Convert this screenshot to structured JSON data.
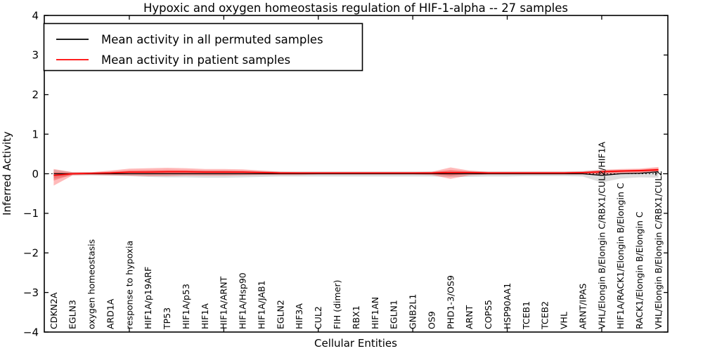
{
  "figure": {
    "title": "Hypoxic and oxygen homeostasis regulation of HIF-1-alpha -- 27 samples",
    "xlabel": "Cellular Entities",
    "ylabel": "Inferred Activity"
  },
  "legend": {
    "items": [
      {
        "label": "Mean activity in all permuted samples",
        "color": "#000000"
      },
      {
        "label": "Mean activity in patient samples",
        "color": "#ff0000"
      }
    ]
  },
  "chart_data": {
    "type": "line",
    "title": "Hypoxic and oxygen homeostasis regulation of HIF-1-alpha -- 27 samples",
    "xlabel": "Cellular Entities",
    "ylabel": "Inferred Activity",
    "ylim": [
      -4,
      4
    ],
    "yticks": [
      -4,
      -3,
      -2,
      -1,
      0,
      1,
      2,
      3,
      4
    ],
    "xticks_major_at_index": [
      4,
      9,
      14,
      19,
      24,
      29
    ],
    "grid": false,
    "legend_position": "upper left",
    "zero_line": {
      "y": 0,
      "style": "dotted",
      "color": "#000000"
    },
    "categories": [
      "CDKN2A",
      "EGLN3",
      "oxygen homeostasis",
      "ARD1A",
      "response to hypoxia",
      "HIF1A/p19ARF",
      "TP53",
      "HIF1A/p53",
      "HIF1A",
      "HIF1A/ARNT",
      "HIF1A/Hsp90",
      "HIF1A/JAB1",
      "EGLN2",
      "HIF3A",
      "CUL2",
      "FIH (dimer)",
      "RBX1",
      "HIF1AN",
      "EGLN1",
      "GNB2L1",
      "OS9",
      "PHD1-3/OS9",
      "ARNT",
      "COPS5",
      "HSP90AA1",
      "TCEB1",
      "TCEB2",
      "VHL",
      "ARNT/IPAS",
      "VHL/Elongin B/Elongin C/RBX1/CUL2/HIF1A",
      "HIF1A/RACK1/Elongin B/Elongin C",
      "RACK1/Elongin B/Elongin C",
      "VHL/Elongin B/Elongin C/RBX1/CUL2"
    ],
    "series": [
      {
        "name": "Mean activity in all permuted samples",
        "color": "#000000",
        "line_width": 1.3,
        "band_color": "rgba(120,120,120,0.25)",
        "values": [
          0,
          0,
          0,
          0,
          0,
          0,
          0,
          0,
          0,
          0,
          0,
          0,
          0,
          0,
          0,
          0,
          0,
          0,
          0,
          0,
          0,
          0,
          0,
          0,
          0,
          0,
          0,
          0,
          0,
          -0.04,
          0.0,
          0.01,
          0.05
        ],
        "band_upper": [
          0.1,
          0.04,
          0.04,
          0.05,
          0.06,
          0.07,
          0.07,
          0.07,
          0.08,
          0.08,
          0.07,
          0.07,
          0.06,
          0.06,
          0.06,
          0.06,
          0.06,
          0.06,
          0.06,
          0.06,
          0.06,
          0.07,
          0.07,
          0.06,
          0.06,
          0.06,
          0.06,
          0.06,
          0.07,
          0.1,
          0.08,
          0.08,
          0.12
        ],
        "band_lower": [
          -0.12,
          -0.04,
          -0.04,
          -0.05,
          -0.06,
          -0.08,
          -0.09,
          -0.09,
          -0.1,
          -0.1,
          -0.09,
          -0.08,
          -0.07,
          -0.07,
          -0.07,
          -0.07,
          -0.07,
          -0.07,
          -0.07,
          -0.07,
          -0.07,
          -0.08,
          -0.08,
          -0.07,
          -0.07,
          -0.06,
          -0.06,
          -0.06,
          -0.07,
          -0.22,
          -0.12,
          -0.09,
          -0.1
        ]
      },
      {
        "name": "Mean activity in patient samples",
        "color": "#ff0000",
        "line_width": 1.7,
        "band_color": "rgba(255,0,0,0.27)",
        "band_inner_scale": 0.5,
        "values": [
          -0.04,
          0.0,
          0.01,
          0.02,
          0.04,
          0.04,
          0.05,
          0.05,
          0.04,
          0.04,
          0.04,
          0.03,
          0.02,
          0.02,
          0.02,
          0.02,
          0.02,
          0.02,
          0.02,
          0.02,
          0.02,
          0.03,
          0.03,
          0.02,
          0.02,
          0.02,
          0.02,
          0.02,
          0.03,
          0.05,
          0.07,
          0.08,
          0.1
        ],
        "band_upper": [
          0.12,
          0.04,
          0.04,
          0.08,
          0.13,
          0.14,
          0.15,
          0.14,
          0.12,
          0.12,
          0.11,
          0.08,
          0.05,
          0.04,
          0.04,
          0.04,
          0.04,
          0.04,
          0.04,
          0.04,
          0.05,
          0.16,
          0.08,
          0.05,
          0.05,
          0.05,
          0.05,
          0.05,
          0.06,
          0.1,
          0.12,
          0.13,
          0.17
        ],
        "band_lower": [
          -0.3,
          -0.04,
          -0.03,
          -0.04,
          -0.05,
          -0.06,
          -0.06,
          -0.05,
          -0.05,
          -0.05,
          -0.04,
          -0.03,
          -0.03,
          -0.03,
          -0.02,
          -0.02,
          -0.02,
          -0.02,
          -0.02,
          -0.02,
          -0.03,
          -0.13,
          -0.04,
          -0.02,
          -0.02,
          -0.02,
          -0.02,
          -0.02,
          -0.02,
          -0.02,
          0.0,
          0.02,
          0.03
        ]
      }
    ]
  }
}
